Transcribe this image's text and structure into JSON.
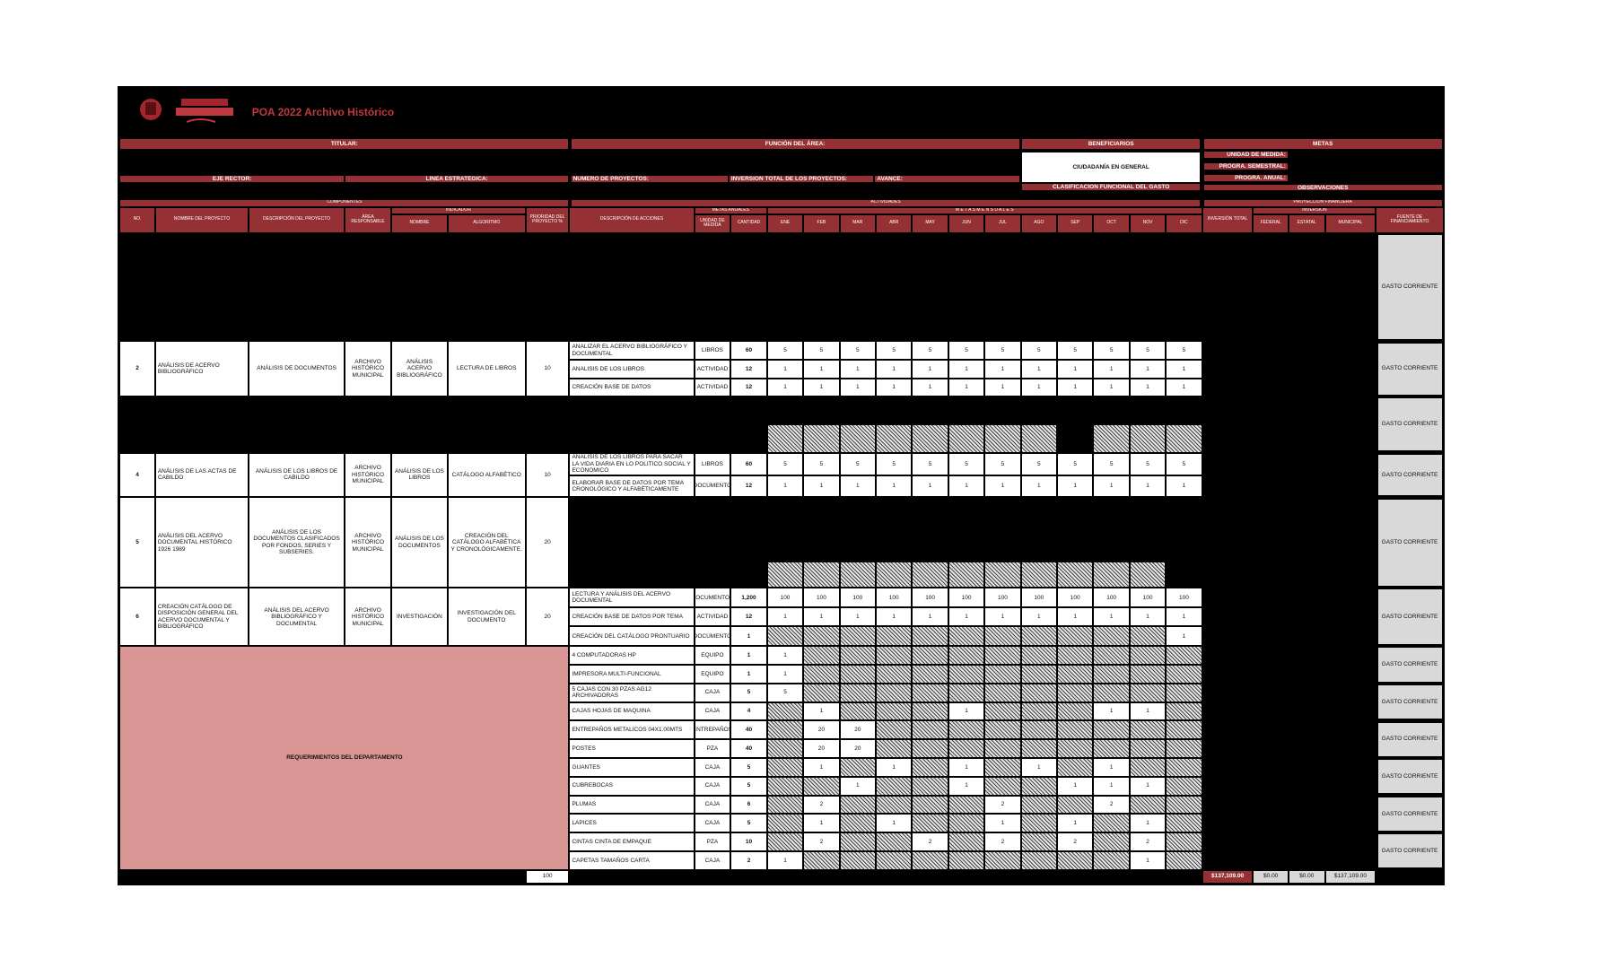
{
  "header": {
    "title": "POA 2022 Archivo Histórico",
    "titular": "TITULAR:",
    "funcion_area": "FUNCIÓN DEL ÁREA:",
    "beneficiarios": "BENEFICIARIOS",
    "metas": "METAS",
    "beneficiarios_value": "CIUDADANÍA EN GENERAL",
    "unidad_medida": "UNIDAD DE MEDIDA:",
    "progra_semestral": "PROGRA. SEMESTRAL:",
    "progra_anual": "PROGRA. ANUAL:",
    "eje_rector": "EJE RECTOR:",
    "linea_estrategica": "LÍNEA ESTRATÉGICA:",
    "numero_proyectos": "NUMERO DE PROYECTOS:",
    "inversion_total_proyectos": "INVERSION TOTAL DE LOS PROYECTOS:",
    "avance": "AVANCE:",
    "clasificacion": "CLASIFICACIÓN FUNCIONAL DEL GASTO",
    "observaciones": "OBSERVACIONES"
  },
  "columns": {
    "componentes": "COMPONENTES",
    "actividades": "ACTIVIDADES",
    "proyeccion": "PROYECCIÓN FINANCIERA",
    "indicador": "INDICADOR",
    "metas_anuales": "METAS ANUALES",
    "metas_mensuales": "M E T A S   M E N S U A L E S",
    "inversion": "INVERSIÓN",
    "no": "NO.",
    "nombre_proyecto": "NOMBRE DEL PROYECTO",
    "descripcion_proyecto": "DESCRIPCIÓN DEL PROYECTO",
    "area": "ÁREA RESPONSABLE",
    "indicador_nombre": "NOMBRE",
    "algoritmo": "ALGORITMO",
    "prioridad": "PRIORIDAD DEL PROYECTO   %",
    "descripcion_acciones": "DESCRIPCIÓN DE ACCIONES",
    "unidad": "UNIDAD DE MEDIDA",
    "cantidad": "CANTIDAD",
    "months": [
      "ENE",
      "FEB",
      "MAR",
      "ABR",
      "MAY",
      "JUN",
      "JUL",
      "AGO",
      "SEP",
      "OCT",
      "NOV",
      "DIC"
    ],
    "inversion_total": "INVERSIÓN TOTAL",
    "federal": "FEDERAL",
    "estatal": "ESTATAL",
    "municipal": "MUNICIPAL",
    "fuente": "FUENTE DE FINANCIAMIENTO"
  },
  "projects": [
    {
      "fuente": "GASTO CORRIENTE"
    },
    {
      "no": 2,
      "nombre": "ANÁLISIS DE ACERVO BIBLIOGRÁFICO",
      "descripcion": "ANÁLISIS DE DOCUMENTOS",
      "area": "ARCHIVO HISTÓRICO MUNICIPAL",
      "indicador": "ANÁLISIS ACERVO BIBLIOGRÁFICO",
      "algoritmo": "LECTURA DE LIBROS",
      "prioridad": 10,
      "fuente": "GASTO CORRIENTE",
      "actions": [
        {
          "descripcion": "ANALIZAR EL ACERVO BIBLIOGRÁFICO Y DOCUMENTAL",
          "unidad": "LIBROS",
          "cantidad": 60,
          "months": [
            5,
            5,
            5,
            5,
            5,
            5,
            5,
            5,
            5,
            5,
            5,
            5
          ]
        },
        {
          "descripcion": "ANALISIS DE LOS LIBROS",
          "unidad": "ACTIVIDAD",
          "cantidad": 12,
          "months": [
            1,
            1,
            1,
            1,
            1,
            1,
            1,
            1,
            1,
            1,
            1,
            1
          ]
        },
        {
          "descripcion": "CREACIÓN BASE DE DATOS",
          "unidad": "ACTIVIDAD",
          "cantidad": 12,
          "months": [
            1,
            1,
            1,
            1,
            1,
            1,
            1,
            1,
            1,
            1,
            1,
            1
          ]
        }
      ]
    },
    {
      "fuente": "GASTO CORRIENTE"
    },
    {
      "no": 4,
      "nombre": "ANÁLISIS DE LAS ACTAS DE CABILDO",
      "descripcion": "ANÁLISIS DE LOS LIBROS DE CABILDO",
      "area": "ARCHIVO HISTÓRICO MUNICIPAL",
      "indicador": "ANÁLISIS DE LOS LIBROS",
      "algoritmo": "CATÁLOGO ALFABÉTICO",
      "prioridad": 10,
      "fuente": "GASTO CORRIENTE",
      "actions": [
        {
          "descripcion": "ANALISIS DE LOS LIBROS PARA SACAR LA VIDA DIARIA EN LO POLITICO SOCIAL Y ECONOMICO",
          "unidad": "LIBROS",
          "cantidad": 60,
          "months": [
            5,
            5,
            5,
            5,
            5,
            5,
            5,
            5,
            5,
            5,
            5,
            5
          ]
        },
        {
          "descripcion": "ELABORAR BASE DE DATOS POR TEMA CRONOLÓGICO Y ALFABÉTICAMENTE",
          "unidad": "DOCUMENTO",
          "cantidad": 12,
          "months": [
            1,
            1,
            1,
            1,
            1,
            1,
            1,
            1,
            1,
            1,
            1,
            1
          ]
        }
      ]
    },
    {
      "no": 5,
      "nombre": "ANÁLISIS DEL ACERVO DOCUMENTAL HISTÓRICO 1926 1989",
      "descripcion": "ANÁLISIS DE LOS DOCUMENTOS CLASIFICADOS POR FONDOS, SERIES Y SUBSERIES.",
      "area": "ARCHIVO HISTÓRICO MUNICIPAL",
      "indicador": "ANÁLISIS DE LOS DOCUMENTOS",
      "algoritmo": "CREACIÓN DEL CATÁLOGO ALFABÉTICA Y CRONOLÓGICAMENTE.",
      "prioridad": 20,
      "fuente": "GASTO CORRIENTE"
    },
    {
      "no": 6,
      "nombre": "CREACIÓN CATÁLOGO DE DISPOSICIÓN GENERAL DEL ACERVO DOCUMENTAL Y BIBLIOGRÁFICO",
      "descripcion": "ANÁLISIS DEL ACERVO BIBLIOGRÁFICO Y DOCUMENTAL",
      "area": "ARCHIVO HISTÓRICO MUNICIPAL",
      "indicador": "INVESTIGACIÓN",
      "algoritmo": "INVESTIGACIÓN DEL DOCUMENTO",
      "prioridad": 20,
      "fuente": "GASTO CORRIENTE",
      "actions": [
        {
          "descripcion": "LECTURA Y ANÁLISIS DEL ACERVO DOCUMENTAL",
          "unidad": "DOCUMENTOS",
          "cantidad": "1,200",
          "months": [
            100,
            100,
            100,
            100,
            100,
            100,
            100,
            100,
            100,
            100,
            100,
            100
          ]
        },
        {
          "descripcion": "CREACIÓN BASE DE DATOS POR TEMA",
          "unidad": "ACTIVIDAD",
          "cantidad": 12,
          "months": [
            1,
            1,
            1,
            1,
            1,
            1,
            1,
            1,
            1,
            1,
            1,
            1
          ]
        },
        {
          "descripcion": "CREACIÓN DEL CATÁLOGO PRONTUARIO",
          "unidad": "DOCUMENTO",
          "cantidad": 1,
          "months": [
            null,
            null,
            null,
            null,
            null,
            null,
            null,
            null,
            null,
            null,
            null,
            1
          ]
        }
      ]
    }
  ],
  "requirements": {
    "label": "REQUERIMIENTOS DEL DEPARTAMENTO",
    "fuente": [
      "GASTO CORRIENTE",
      "GASTO CORRIENTE",
      "GASTO CORRIENTE",
      "GASTO CORRIENTE",
      "GASTO CORRIENTE",
      "GASTO CORRIENTE"
    ],
    "items": [
      {
        "descripcion": "4 COMPUTADORAS HP",
        "unidad": "EQUIPO",
        "cantidad": 1,
        "months": [
          1,
          null,
          null,
          null,
          null,
          null,
          null,
          null,
          null,
          null,
          null,
          null
        ]
      },
      {
        "descripcion": "IMPRESORA MULTI-FUNCIONAL",
        "unidad": "EQUIPO",
        "cantidad": 1,
        "months": [
          1,
          null,
          null,
          null,
          null,
          null,
          null,
          null,
          null,
          null,
          null,
          null
        ]
      },
      {
        "descripcion": "5 CAJAS CON 30 PZAS AG12 ARCHIVADORAS",
        "unidad": "CAJA",
        "cantidad": 5,
        "months": [
          5,
          null,
          null,
          null,
          null,
          null,
          null,
          null,
          null,
          null,
          null,
          null
        ]
      },
      {
        "descripcion": "CAJAS HOJAS DE MAQUINA",
        "unidad": "CAJA",
        "cantidad": 4,
        "months": [
          null,
          1,
          null,
          null,
          null,
          1,
          null,
          null,
          null,
          1,
          1,
          null
        ]
      },
      {
        "descripcion": "ENTREPAÑOS METALICOS 04X1.00MTS",
        "unidad": "ENTREPAÑOS",
        "cantidad": 40,
        "months": [
          null,
          20,
          20,
          null,
          null,
          null,
          null,
          null,
          null,
          null,
          null,
          null
        ]
      },
      {
        "descripcion": "POSTES",
        "unidad": "PZA",
        "cantidad": 40,
        "months": [
          null,
          20,
          20,
          null,
          null,
          null,
          null,
          null,
          null,
          null,
          null,
          null
        ]
      },
      {
        "descripcion": "GUANTES",
        "unidad": "CAJA",
        "cantidad": 5,
        "months": [
          null,
          1,
          null,
          1,
          null,
          1,
          null,
          1,
          null,
          1,
          null,
          null
        ]
      },
      {
        "descripcion": "CUBREBOCAS",
        "unidad": "CAJA",
        "cantidad": 5,
        "months": [
          null,
          null,
          1,
          null,
          null,
          1,
          null,
          null,
          1,
          1,
          1,
          null
        ]
      },
      {
        "descripcion": "PLUMAS",
        "unidad": "CAJA",
        "cantidad": 6,
        "months": [
          null,
          2,
          null,
          null,
          null,
          null,
          2,
          null,
          null,
          2,
          null,
          null
        ]
      },
      {
        "descripcion": "LAPICES",
        "unidad": "CAJA",
        "cantidad": 5,
        "months": [
          null,
          1,
          null,
          1,
          null,
          null,
          1,
          null,
          1,
          null,
          1,
          null
        ]
      },
      {
        "descripcion": "CINTAS CINTA DE EMPAQUE",
        "unidad": "PZA",
        "cantidad": 10,
        "months": [
          null,
          2,
          null,
          null,
          2,
          null,
          2,
          null,
          2,
          null,
          2,
          null
        ]
      },
      {
        "descripcion": "CAPETAS TAMAÑOS CARTA",
        "unidad": "CAJA",
        "cantidad": 2,
        "months": [
          1,
          null,
          null,
          null,
          null,
          null,
          null,
          null,
          null,
          null,
          1,
          null
        ]
      }
    ]
  },
  "totals": {
    "prioridad": 100,
    "inversion_total": "$137,109.00",
    "federal": "$0.00",
    "estatal": "$0.00",
    "municipal": "$137,109.00"
  }
}
